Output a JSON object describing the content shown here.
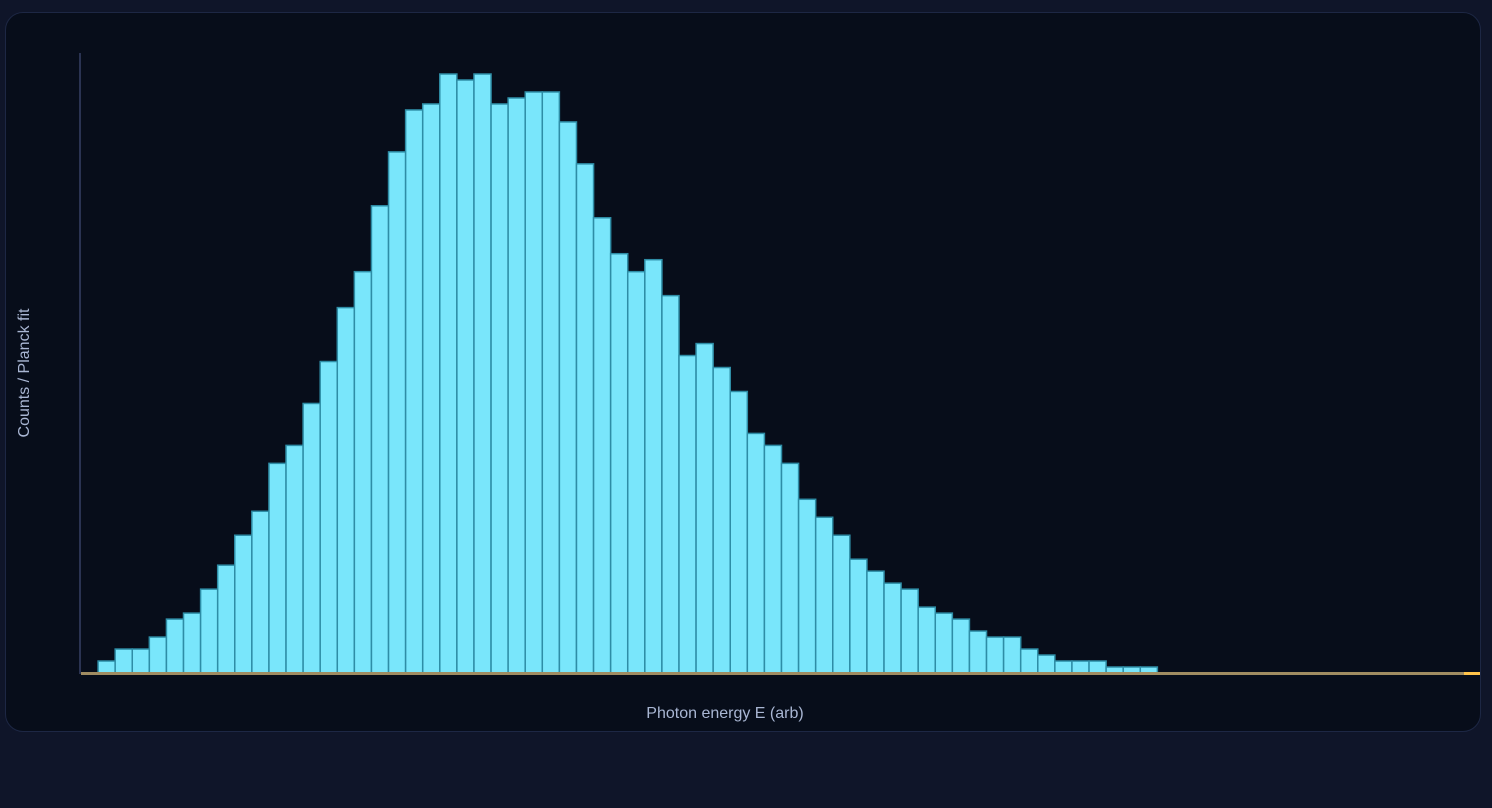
{
  "chart_data": {
    "type": "bar",
    "xlabel": "Photon energy E (arb)",
    "ylabel": "Counts / Planck fit",
    "bin_count": 82,
    "values": [
      0,
      2,
      4,
      4,
      6,
      9,
      10,
      14,
      18,
      23,
      27,
      35,
      38,
      45,
      52,
      61,
      67,
      78,
      87,
      94,
      95,
      100,
      99,
      100,
      95,
      96,
      97,
      97,
      92,
      85,
      76,
      70,
      67,
      69,
      63,
      53,
      55,
      51,
      47,
      40,
      38,
      35,
      29,
      26,
      23,
      19,
      17,
      15,
      14,
      11,
      10,
      9,
      7,
      6,
      6,
      4,
      3,
      2,
      2,
      2,
      1,
      1,
      1,
      0,
      0,
      0,
      0,
      0,
      0,
      0,
      0,
      0,
      0,
      0,
      0,
      0,
      0,
      0,
      0,
      0,
      0,
      0
    ],
    "ylim": [
      0,
      100
    ],
    "colors": {
      "bar_fill": "#79e6fb",
      "bar_stroke": "#2e8da6",
      "baseline": "#a08c62",
      "baseline_tail": "#ffc34a",
      "axis": "#2a3352"
    }
  }
}
